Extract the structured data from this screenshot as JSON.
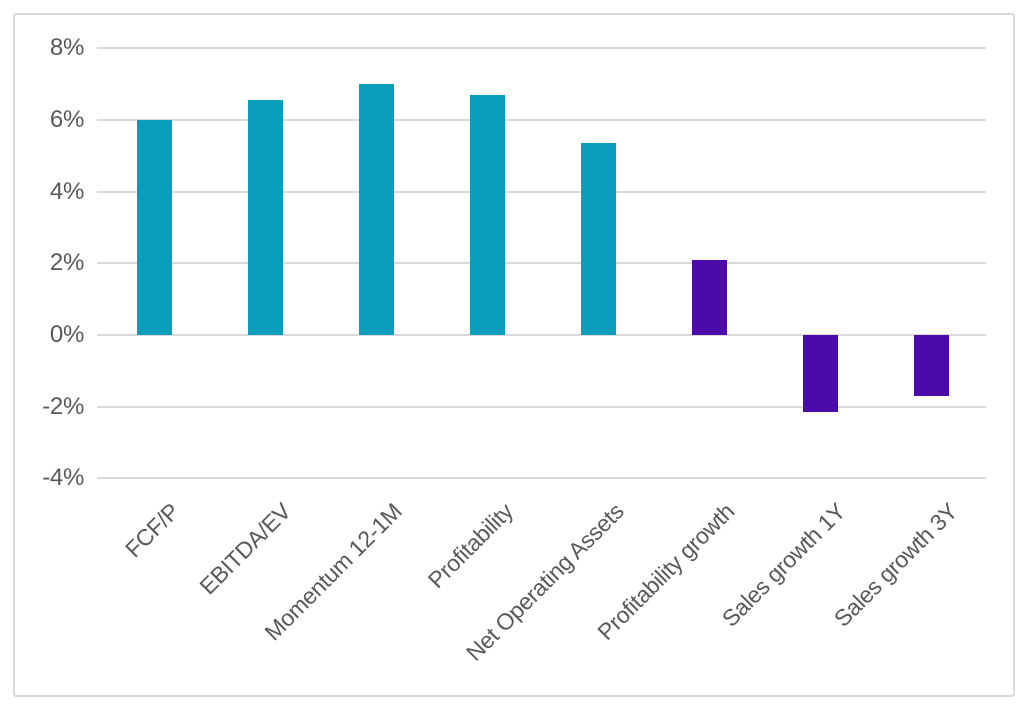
{
  "chart_data": {
    "type": "bar",
    "title": "",
    "xlabel": "",
    "ylabel": "",
    "categories": [
      "FCF/P",
      "EBITDA/EV",
      "Momentum 12-1M",
      "Profitability",
      "Net Operating Assets",
      "Profitability growth",
      "Sales growth 1Y",
      "Sales growth 3Y"
    ],
    "values": [
      6.0,
      6.55,
      7.0,
      6.7,
      5.35,
      2.1,
      -2.15,
      -1.7
    ],
    "bar_color_keys": [
      "teal",
      "teal",
      "teal",
      "teal",
      "teal",
      "purple",
      "purple",
      "purple"
    ],
    "ylim": [
      -4,
      8
    ],
    "ytick_values": [
      8,
      6,
      4,
      2,
      0,
      -2,
      -4
    ],
    "ytick_labels": [
      "8%",
      "6%",
      "4%",
      "2%",
      "0%",
      "-2%",
      "-4%"
    ],
    "grid": true,
    "legend": "none"
  },
  "colors": {
    "teal": "#0A9EBD",
    "purple": "#4B0AA9",
    "gridline": "#D9D9D9",
    "axis_text": "#595959",
    "frame_border": "#D9D9D9",
    "background": "#FFFFFF"
  }
}
